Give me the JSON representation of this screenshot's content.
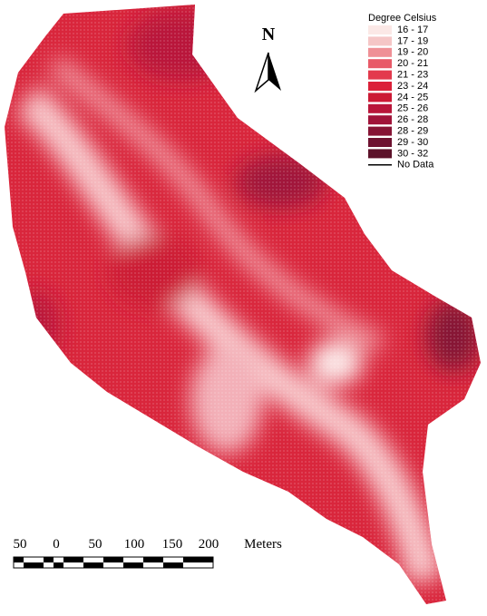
{
  "legend": {
    "title": "Degree Celsius",
    "items": [
      {
        "label": "16 - 17",
        "color": "#fbe8e6"
      },
      {
        "label": "17 - 19",
        "color": "#f5c6c6"
      },
      {
        "label": "19 - 20",
        "color": "#ef9096"
      },
      {
        "label": "20 - 21",
        "color": "#e85a68"
      },
      {
        "label": "21 - 23",
        "color": "#e33a4d"
      },
      {
        "label": "23 - 24",
        "color": "#db2139"
      },
      {
        "label": "24 - 25",
        "color": "#cc1a35"
      },
      {
        "label": "25 - 26",
        "color": "#b9163a"
      },
      {
        "label": "26 - 28",
        "color": "#a0143a"
      },
      {
        "label": "28 - 29",
        "color": "#861435"
      },
      {
        "label": "29 - 30",
        "color": "#6e1230"
      },
      {
        "label": "30 - 32",
        "color": "#5c1229"
      },
      {
        "label": "No Data",
        "color": "#000000"
      }
    ]
  },
  "north_arrow": {
    "label": "N"
  },
  "scale_bar": {
    "labels": [
      "50",
      "0",
      "50",
      "100",
      "150",
      "200"
    ],
    "unit": "Meters"
  }
}
